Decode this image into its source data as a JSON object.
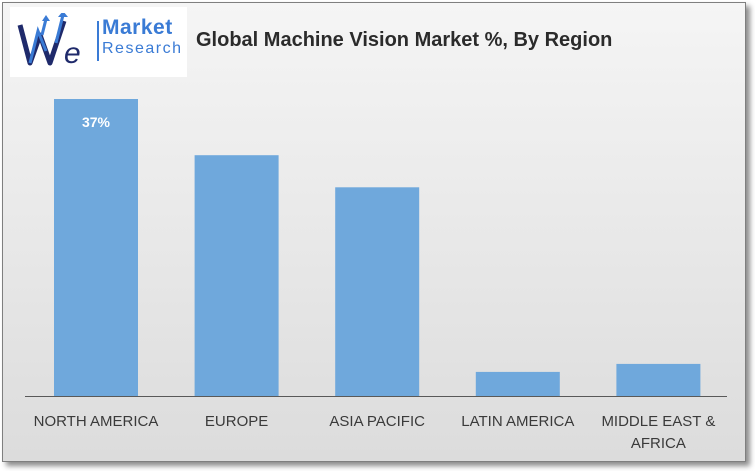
{
  "header": {
    "title": "Global Machine Vision Market %, By Region",
    "logo_line1": "Market",
    "logo_line2": "Research",
    "logo_monogram": "We"
  },
  "colors": {
    "bar": "#6fa8dc",
    "axis": "#595959",
    "logo_blue": "#3a7bd5",
    "logo_navy": "#1f2a6b"
  },
  "chart_data": {
    "type": "bar",
    "title": "Global Machine Vision Market %, By Region",
    "xlabel": "",
    "ylabel": "",
    "categories": [
      "NORTH AMERICA",
      "EUROPE",
      "ASIA PACIFIC",
      "LATIN AMERICA",
      "MIDDLE EAST & AFRICA"
    ],
    "category_lines": [
      [
        "NORTH AMERICA"
      ],
      [
        "EUROPE"
      ],
      [
        "ASIA PACIFIC"
      ],
      [
        "LATIN AMERICA"
      ],
      [
        "MIDDLE EAST &",
        "AFRICA"
      ]
    ],
    "values": [
      37,
      30,
      26,
      3,
      4
    ],
    "data_labels": [
      "37%",
      "",
      "",
      "",
      ""
    ],
    "ylim": [
      0,
      37
    ],
    "grid": false,
    "legend": "none"
  }
}
